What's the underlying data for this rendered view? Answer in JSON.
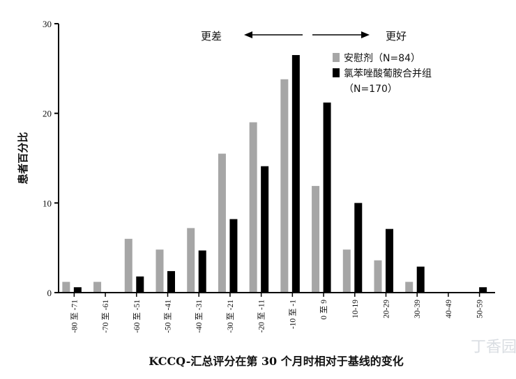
{
  "chart_data": {
    "type": "bar",
    "categories": [
      "-80 至 -71",
      "-70 至 -61",
      "-60 至 -51",
      "-50 至 -41",
      "-40 至 -31",
      "-30 至 -21",
      "-20 至 -11",
      "-10 至 -1",
      "0 至 9",
      "10-19",
      "20-29",
      "30-39",
      "40-49",
      "50-59"
    ],
    "series": [
      {
        "name": "安慰剂（N=84）",
        "color": "#a6a6a6",
        "values": [
          1.2,
          1.2,
          6.0,
          4.8,
          7.2,
          15.5,
          19.0,
          23.8,
          11.9,
          4.8,
          3.6,
          1.2,
          0,
          0
        ]
      },
      {
        "name": "氯苯唑酸葡胺合并组",
        "name_line2": "（N=170）",
        "color": "#000000",
        "values": [
          0.6,
          0,
          1.8,
          2.4,
          4.7,
          8.2,
          14.1,
          26.5,
          21.2,
          10.0,
          7.1,
          2.9,
          0,
          0.6
        ]
      }
    ],
    "xlabel": "KCCQ-汇总评分在第 30 个月时相对于基线的变化",
    "ylabel": "患者百分比",
    "ylim": [
      0,
      30
    ],
    "yticks": [
      0,
      10,
      20,
      30
    ],
    "annotations": {
      "worse": "更差",
      "better": "更好"
    },
    "grid": false,
    "legend_position": "top-right"
  },
  "watermark": "丁香园"
}
